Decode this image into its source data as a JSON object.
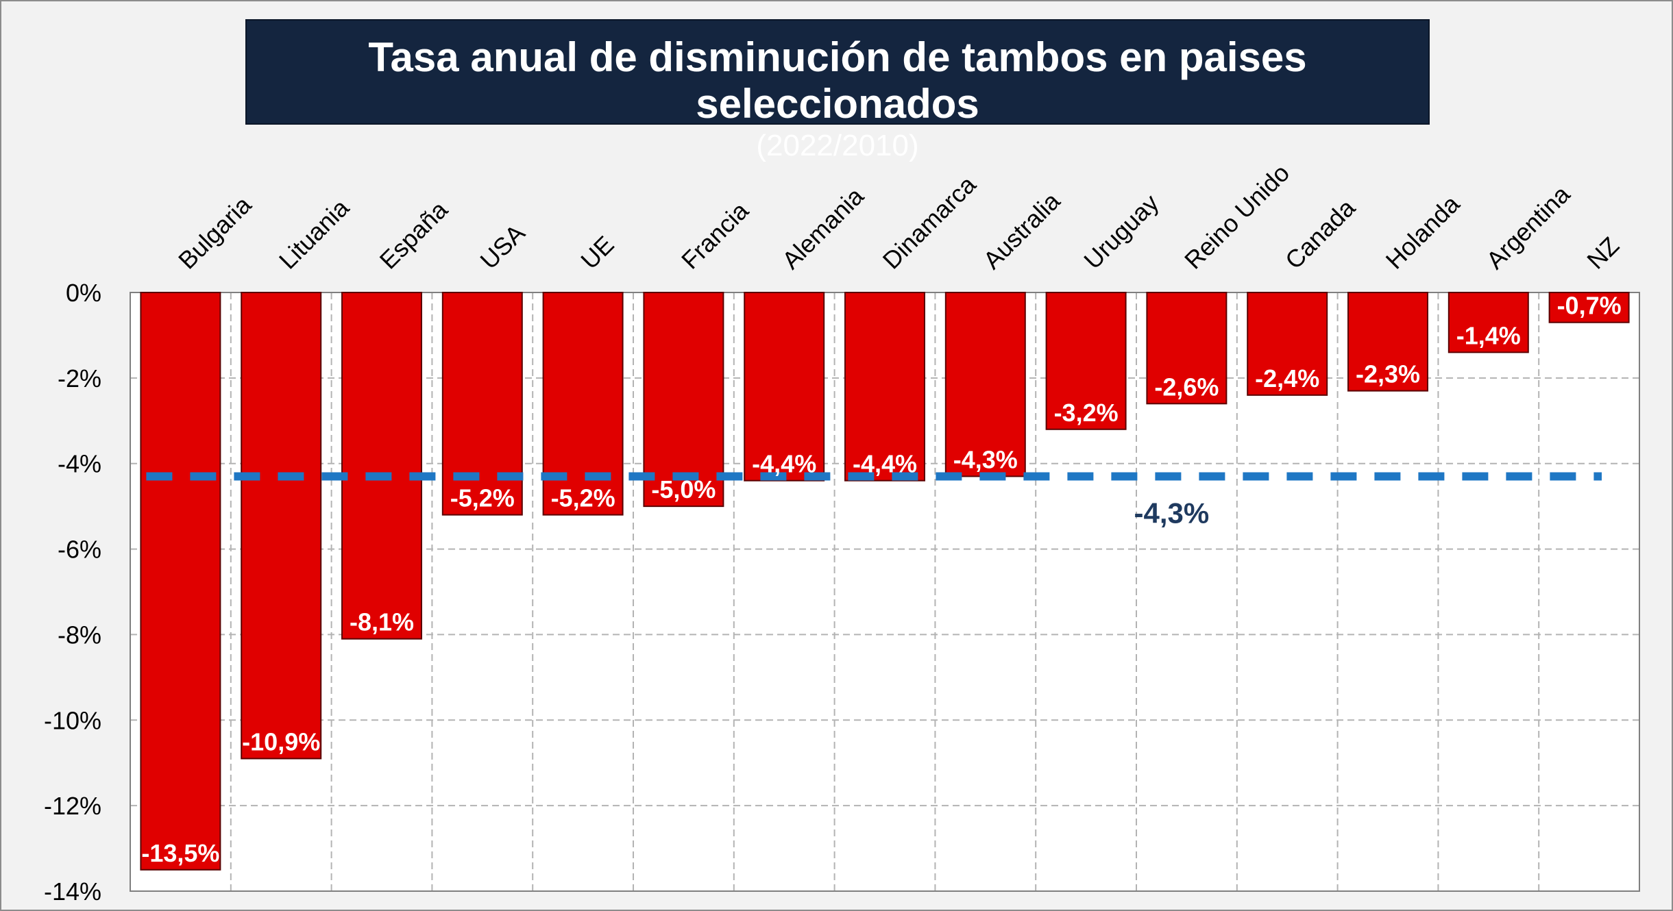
{
  "chart_data": {
    "type": "bar",
    "title": "Tasa anual de disminución de tambos en paises seleccionados",
    "subtitle": "(2022/2010)",
    "categories": [
      "Bulgaria",
      "Lituania",
      "España",
      "USA",
      "UE",
      "Francia",
      "Alemania",
      "Dinamarca",
      "Australia",
      "Uruguay",
      "Reino Unido",
      "Canada",
      "Holanda",
      "Argentina",
      "NZ"
    ],
    "values": [
      -13.5,
      -10.9,
      -8.1,
      -5.2,
      -5.2,
      -5.0,
      -4.4,
      -4.4,
      -4.3,
      -3.2,
      -2.6,
      -2.4,
      -2.3,
      -1.4,
      -0.7
    ],
    "data_labels": [
      "-13,5%",
      "-10,9%",
      "-8,1%",
      "-5,2%",
      "-5,2%",
      "-5,0%",
      "-4,4%",
      "-4,4%",
      "-4,3%",
      "-3,2%",
      "-2,6%",
      "-2,4%",
      "-2,3%",
      "-1,4%",
      "-0,7%"
    ],
    "ylim": [
      -14,
      0
    ],
    "yticks": [
      0,
      -2,
      -4,
      -6,
      -8,
      -10,
      -12,
      -14
    ],
    "ytick_labels": [
      "0%",
      "-2%",
      "-4%",
      "-6%",
      "-8%",
      "-10%",
      "-12%",
      "-14%"
    ],
    "xlabel": "",
    "ylabel": "",
    "grid": true,
    "reference_line": {
      "value": -4.3,
      "label": "-4,3%",
      "style": "dashed"
    },
    "colors": {
      "bar": "#e00000",
      "bar_edge": "#5a0000",
      "reference_line": "#1f77c4",
      "reference_label": "#1f3a5f",
      "title_bg": "#14253f",
      "plot_bg": "#ffffff",
      "frame_bg": "#f2f2f2"
    }
  }
}
